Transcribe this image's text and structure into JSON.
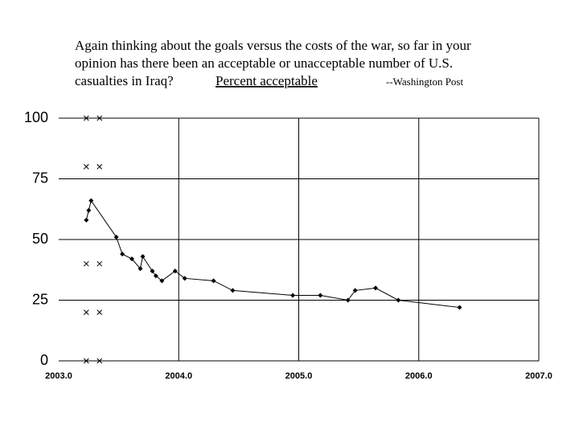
{
  "chart_data": {
    "type": "line",
    "title": [
      "Again thinking about the goals versus the costs of the war, so far in your",
      "opinion has there been an acceptable or unacceptable number of U.S.",
      "casualties in Iraq?"
    ],
    "subtitle": "Percent acceptable",
    "source": "--Washington Post",
    "series": [
      {
        "color": "#000000",
        "x": [
          2003.23,
          2003.25,
          2003.27,
          2003.48,
          2003.53,
          2003.61,
          2003.68,
          2003.7,
          2003.78,
          2003.81,
          2003.86,
          2003.97,
          2004.05,
          2004.29,
          2004.45,
          2004.95,
          2005.18,
          2005.41,
          2005.47,
          2005.64,
          2005.83,
          2006.34
        ],
        "values": [
          58,
          62,
          66,
          51,
          44,
          42,
          38,
          43,
          37,
          35,
          33,
          37,
          34,
          33,
          29,
          27,
          27,
          25,
          29,
          30,
          25,
          22
        ]
      },
      {
        "type": "scatter",
        "color": "#000000",
        "x": [
          2003.23,
          2003.23,
          2003.23,
          2003.23,
          2003.23,
          2003.34,
          2003.34,
          2003.34,
          2003.34,
          2003.34
        ],
        "values": [
          0,
          20,
          40,
          80,
          100,
          0,
          20,
          40,
          80,
          100
        ]
      }
    ],
    "xlim": [
      2003,
      2007
    ],
    "xticks": [
      {
        "value": 2003,
        "label": "2003.0"
      },
      {
        "value": 2004,
        "label": "2004.0"
      },
      {
        "value": 2005,
        "label": "2005.0"
      },
      {
        "value": 2006,
        "label": "2006.0"
      },
      {
        "value": 2007,
        "label": "2007.0"
      }
    ],
    "ylim": [
      0,
      100
    ],
    "yticks": [
      0,
      25,
      50,
      75,
      100
    ],
    "grid": true
  }
}
